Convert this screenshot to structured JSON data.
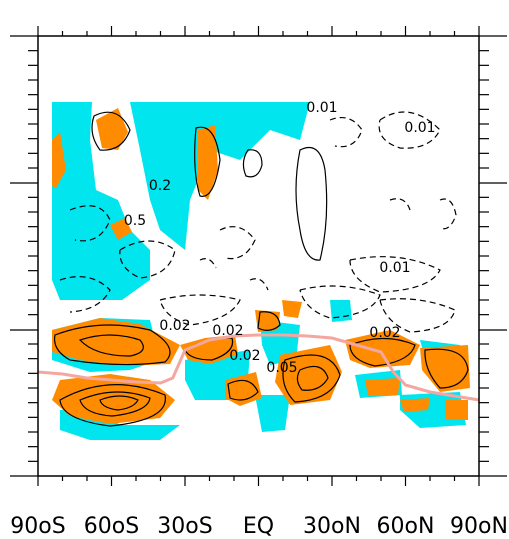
{
  "chart_data": {
    "type": "contour",
    "xlim": [
      -90,
      90
    ],
    "x_ticks": [
      -90,
      -60,
      -30,
      0,
      30,
      60,
      90
    ],
    "x_tick_labels": [
      "90oS",
      "60oS",
      "30oS",
      "EQ",
      "30oN",
      "60oN",
      "90oN"
    ],
    "contour_labels": [
      "0.01",
      "0.01",
      "0.02",
      "0.02",
      "0.2",
      "0.5",
      "0.02",
      "0.02",
      "0.05",
      "0.01"
    ],
    "colors": {
      "positive_fill": "#ff8c00",
      "negative_fill": "#00e5ee",
      "contour_line": "#000000",
      "overlay_curve": "#f4a6a0",
      "background": "#ffffff"
    },
    "overlay_curve_x": [
      -90,
      -80,
      -70,
      -60,
      -50,
      -40,
      -35,
      -30,
      -20,
      -10,
      0,
      10,
      20,
      30,
      40,
      50,
      55,
      60,
      70,
      80,
      90
    ],
    "grid": false
  }
}
